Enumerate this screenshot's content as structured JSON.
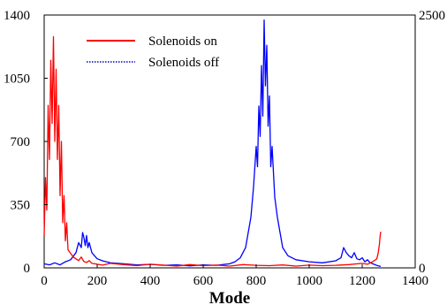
{
  "chart_data": {
    "type": "line",
    "title": "",
    "xlabel": "Mode",
    "ylabel": "",
    "ylabel_right": "",
    "xlim": [
      0,
      1400
    ],
    "ylim": [
      0,
      1400
    ],
    "ylim_right": [
      0,
      2500
    ],
    "x_ticks": [
      0,
      200,
      400,
      600,
      800,
      1000,
      1200,
      1400
    ],
    "x_tick_labels": [
      "0",
      "200",
      "400",
      "600",
      "800",
      "1000",
      "1200",
      "1400"
    ],
    "y_ticks": [
      0,
      350,
      700,
      1050,
      1400
    ],
    "y_tick_labels": [
      "0",
      "350",
      "700",
      "1050",
      "1400"
    ],
    "y_right_ticks": [
      0,
      2500
    ],
    "y_right_tick_labels": [
      "0",
      "2500"
    ],
    "grid": false,
    "legend_position": "top-left",
    "series": [
      {
        "name": "Solenoids on",
        "axis": "left",
        "color": "#ff0000",
        "line_style": "solid",
        "x": [
          0,
          5,
          10,
          15,
          20,
          25,
          30,
          35,
          40,
          45,
          50,
          55,
          60,
          65,
          70,
          75,
          80,
          85,
          90,
          100,
          110,
          120,
          130,
          140,
          150,
          160,
          170,
          180,
          200,
          220,
          250,
          300,
          350,
          400,
          450,
          500,
          550,
          600,
          650,
          700,
          750,
          800,
          850,
          900,
          950,
          1000,
          1050,
          1100,
          1150,
          1200,
          1220,
          1240,
          1255,
          1260,
          1265,
          1268,
          1270
        ],
        "y": [
          180,
          500,
          320,
          900,
          600,
          1150,
          800,
          1280,
          700,
          1100,
          600,
          900,
          400,
          700,
          250,
          400,
          150,
          250,
          100,
          80,
          60,
          50,
          40,
          60,
          35,
          30,
          40,
          25,
          20,
          15,
          25,
          18,
          12,
          20,
          15,
          10,
          18,
          12,
          15,
          10,
          18,
          14,
          12,
          16,
          10,
          15,
          12,
          14,
          18,
          25,
          20,
          35,
          50,
          80,
          130,
          180,
          200
        ]
      },
      {
        "name": "Solenoids off",
        "axis": "right",
        "color": "#0000ff",
        "line_style": "dotted",
        "x": [
          0,
          20,
          40,
          60,
          80,
          100,
          120,
          130,
          140,
          145,
          150,
          155,
          160,
          165,
          170,
          180,
          190,
          200,
          220,
          250,
          300,
          350,
          400,
          450,
          500,
          550,
          600,
          650,
          700,
          720,
          740,
          760,
          770,
          780,
          790,
          800,
          805,
          810,
          815,
          820,
          825,
          830,
          835,
          840,
          845,
          850,
          855,
          860,
          870,
          880,
          890,
          900,
          920,
          950,
          1000,
          1050,
          1100,
          1120,
          1130,
          1140,
          1150,
          1160,
          1170,
          1180,
          1190,
          1200,
          1210,
          1220,
          1230,
          1240,
          1250,
          1260,
          1270
        ],
        "y": [
          40,
          30,
          50,
          30,
          60,
          80,
          150,
          250,
          200,
          350,
          300,
          220,
          320,
          200,
          250,
          150,
          120,
          90,
          70,
          50,
          40,
          30,
          35,
          25,
          30,
          20,
          30,
          25,
          40,
          60,
          100,
          200,
          350,
          500,
          800,
          1200,
          1000,
          1600,
          1300,
          2000,
          1500,
          2450,
          1800,
          2200,
          1400,
          1700,
          1000,
          1200,
          700,
          500,
          350,
          200,
          120,
          80,
          60,
          50,
          70,
          100,
          200,
          150,
          120,
          100,
          150,
          90,
          80,
          100,
          60,
          80,
          50,
          40,
          30,
          20,
          15
        ]
      }
    ]
  }
}
